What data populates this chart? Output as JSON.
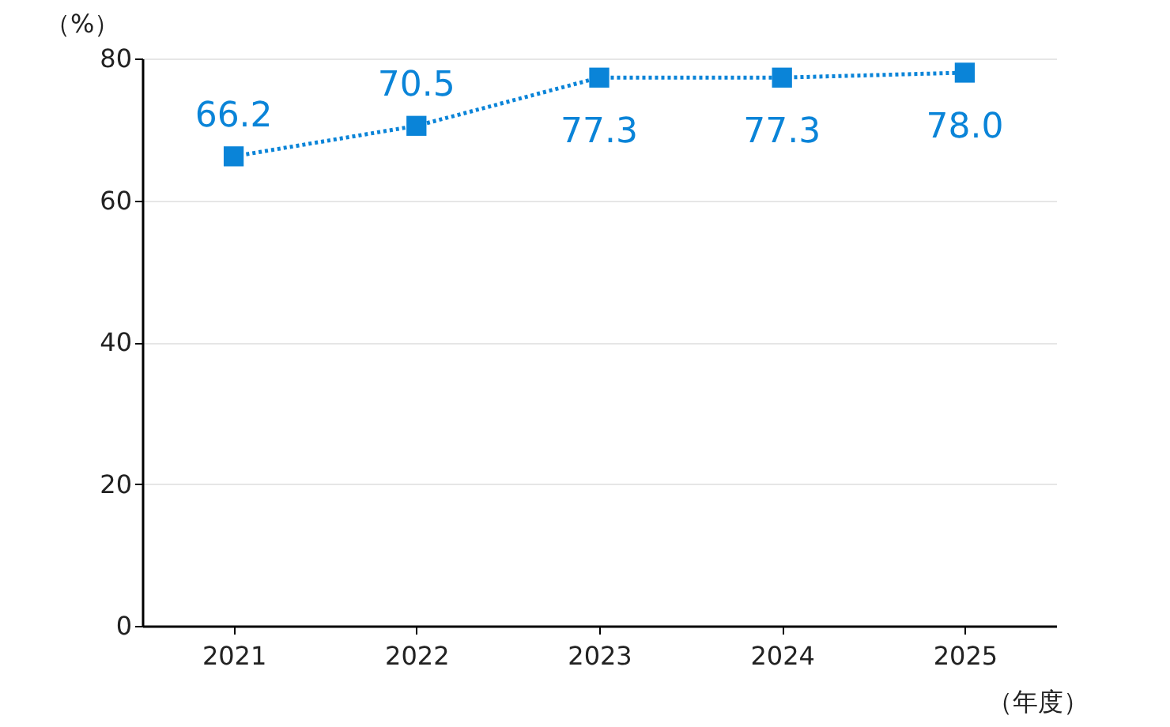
{
  "chart_data": {
    "type": "line",
    "ylabel": "（%）",
    "xlabel": "（年度）",
    "categories": [
      "2021",
      "2022",
      "2023",
      "2024",
      "2025"
    ],
    "series": [
      {
        "color": "#0a84d8",
        "values": [
          66.2,
          70.5,
          77.3,
          77.3,
          78.0
        ],
        "value_labels": [
          "66.2",
          "70.5",
          "77.3",
          "77.3",
          "78.0"
        ]
      }
    ],
    "ylim": [
      0,
      80
    ],
    "yticks": [
      0,
      20,
      40,
      60,
      80
    ],
    "grid": "y",
    "legend": false,
    "marker": "square",
    "line_style": "dotted"
  }
}
